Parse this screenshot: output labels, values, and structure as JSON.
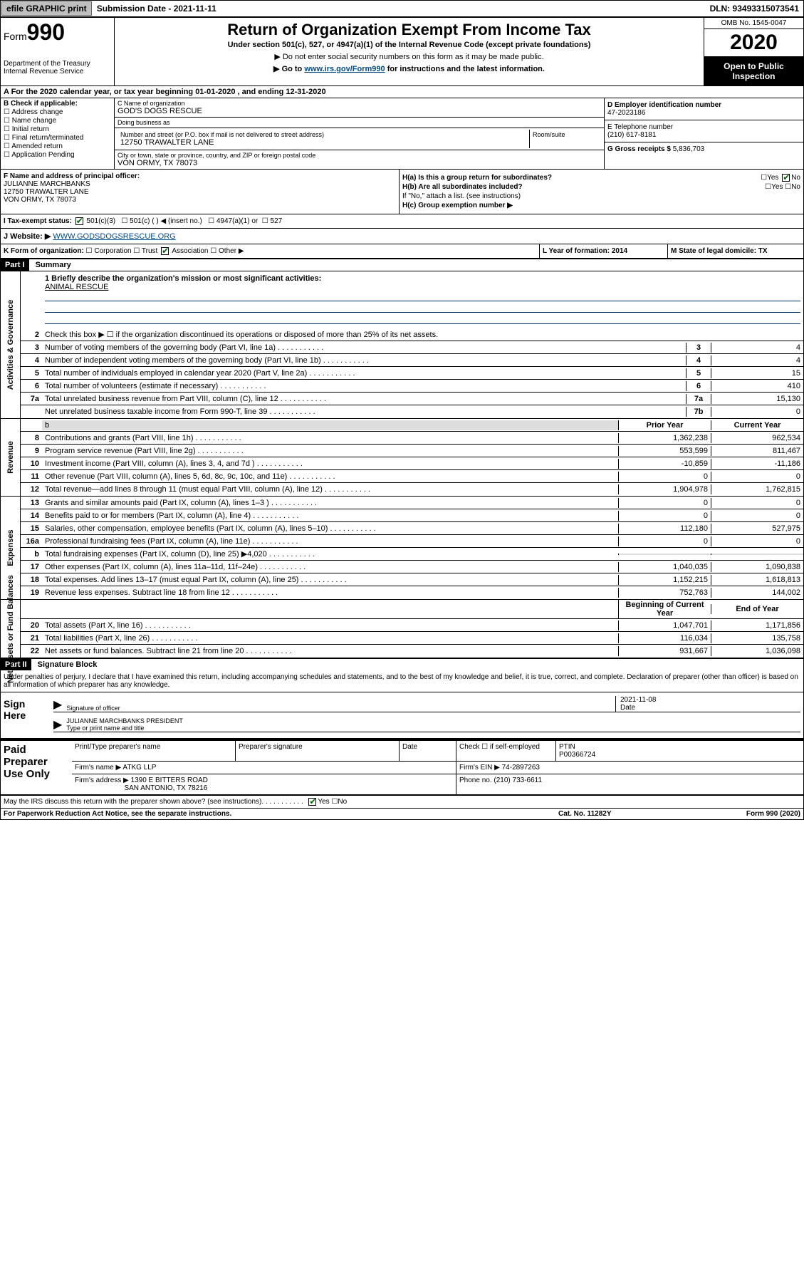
{
  "topbar": {
    "efile": "efile GRAPHIC print",
    "submission": "Submission Date - 2021-11-11",
    "dln": "DLN: 93493315073541"
  },
  "header": {
    "form_label": "Form",
    "form_no": "990",
    "title": "Return of Organization Exempt From Income Tax",
    "sub1": "Under section 501(c), 527, or 4947(a)(1) of the Internal Revenue Code (except private foundations)",
    "sub2": "▶ Do not enter social security numbers on this form as it may be made public.",
    "sub3_pre": "▶ Go to ",
    "sub3_link": "www.irs.gov/Form990",
    "sub3_post": " for instructions and the latest information.",
    "dept": "Department of the Treasury Internal Revenue Service",
    "omb": "OMB No. 1545-0047",
    "year": "2020",
    "open": "Open to Public Inspection"
  },
  "rowA": "A For the 2020 calendar year, or tax year beginning 01-01-2020   , and ending 12-31-2020",
  "boxB": {
    "label": "B Check if applicable:",
    "opts": [
      "Address change",
      "Name change",
      "Initial return",
      "Final return/terminated",
      "Amended return",
      "Application Pending"
    ]
  },
  "boxC": {
    "name_lbl": "C Name of organization",
    "name": "GOD'S DOGS RESCUE",
    "dba_lbl": "Doing business as",
    "dba": "",
    "street_lbl": "Number and street (or P.O. box if mail is not delivered to street address)",
    "street": "12750 TRAWALTER LANE",
    "room_lbl": "Room/suite",
    "city_lbl": "City or town, state or province, country, and ZIP or foreign postal code",
    "city": "VON ORMY, TX  78073"
  },
  "boxD": {
    "ein_lbl": "D Employer identification number",
    "ein": "47-2023186",
    "tel_lbl": "E Telephone number",
    "tel": "(210) 617-8181",
    "gross_lbl": "G Gross receipts $ ",
    "gross": "5,836,703"
  },
  "boxF": {
    "lbl": "F  Name and address of principal officer:",
    "name": "JULIANNE MARCHBANKS",
    "addr1": "12750 TRAWALTER LANE",
    "addr2": "VON ORMY, TX  78073"
  },
  "boxH": {
    "a": "H(a)  Is this a group return for subordinates?",
    "b": "H(b)  Are all subordinates included?",
    "b_note": "If \"No,\" attach a list. (see instructions)",
    "c": "H(c)  Group exemption number ▶",
    "yes": "Yes",
    "no": "No"
  },
  "rowI": {
    "label": "I     Tax-exempt status:",
    "o1": "501(c)(3)",
    "o2": "501(c) (  ) ◀ (insert no.)",
    "o3": "4947(a)(1) or",
    "o4": "527"
  },
  "rowJ": {
    "label": "J    Website: ▶",
    "url": "WWW.GODSDOGSRESCUE.ORG"
  },
  "rowK": {
    "label": "K Form of organization:",
    "o1": "Corporation",
    "o2": "Trust",
    "o3": "Association",
    "o4": "Other ▶",
    "l": "L Year of formation: 2014",
    "m": "M State of legal domicile: TX"
  },
  "part1": {
    "hdr": "Part I",
    "title": "Summary"
  },
  "summary": {
    "q1": "1  Briefly describe the organization's mission or most significant activities:",
    "mission": "ANIMAL RESCUE",
    "q2": "Check this box ▶ ☐  if the organization discontinued its operations or disposed of more than 25% of its net assets.",
    "lines_gov": [
      {
        "n": "3",
        "d": "Number of voting members of the governing body (Part VI, line 1a)",
        "box": "3",
        "v": "4"
      },
      {
        "n": "4",
        "d": "Number of independent voting members of the governing body (Part VI, line 1b)",
        "box": "4",
        "v": "4"
      },
      {
        "n": "5",
        "d": "Total number of individuals employed in calendar year 2020 (Part V, line 2a)",
        "box": "5",
        "v": "15"
      },
      {
        "n": "6",
        "d": "Total number of volunteers (estimate if necessary)",
        "box": "6",
        "v": "410"
      },
      {
        "n": "7a",
        "d": "Total unrelated business revenue from Part VIII, column (C), line 12",
        "box": "7a",
        "v": "15,130"
      },
      {
        "n": "",
        "d": "Net unrelated business taxable income from Form 990-T, line 39",
        "box": "7b",
        "v": "0"
      }
    ],
    "hdr_prior": "Prior Year",
    "hdr_curr": "Current Year",
    "revenue": [
      {
        "n": "8",
        "d": "Contributions and grants (Part VIII, line 1h)",
        "p": "1,362,238",
        "c": "962,534"
      },
      {
        "n": "9",
        "d": "Program service revenue (Part VIII, line 2g)",
        "p": "553,599",
        "c": "811,467"
      },
      {
        "n": "10",
        "d": "Investment income (Part VIII, column (A), lines 3, 4, and 7d )",
        "p": "-10,859",
        "c": "-11,186"
      },
      {
        "n": "11",
        "d": "Other revenue (Part VIII, column (A), lines 5, 6d, 8c, 9c, 10c, and 11e)",
        "p": "0",
        "c": "0"
      },
      {
        "n": "12",
        "d": "Total revenue—add lines 8 through 11 (must equal Part VIII, column (A), line 12)",
        "p": "1,904,978",
        "c": "1,762,815"
      }
    ],
    "expenses": [
      {
        "n": "13",
        "d": "Grants and similar amounts paid (Part IX, column (A), lines 1–3 )",
        "p": "0",
        "c": "0"
      },
      {
        "n": "14",
        "d": "Benefits paid to or for members (Part IX, column (A), line 4)",
        "p": "0",
        "c": "0"
      },
      {
        "n": "15",
        "d": "Salaries, other compensation, employee benefits (Part IX, column (A), lines 5–10)",
        "p": "112,180",
        "c": "527,975"
      },
      {
        "n": "16a",
        "d": "Professional fundraising fees (Part IX, column (A), line 11e)",
        "p": "0",
        "c": "0"
      },
      {
        "n": "b",
        "d": "Total fundraising expenses (Part IX, column (D), line 25) ▶4,020",
        "p": "",
        "c": "",
        "grey": true
      },
      {
        "n": "17",
        "d": "Other expenses (Part IX, column (A), lines 11a–11d, 11f–24e)",
        "p": "1,040,035",
        "c": "1,090,838"
      },
      {
        "n": "18",
        "d": "Total expenses. Add lines 13–17 (must equal Part IX, column (A), line 25)",
        "p": "1,152,215",
        "c": "1,618,813"
      },
      {
        "n": "19",
        "d": "Revenue less expenses. Subtract line 18 from line 12",
        "p": "752,763",
        "c": "144,002"
      }
    ],
    "hdr_beg": "Beginning of Current Year",
    "hdr_end": "End of Year",
    "netassets": [
      {
        "n": "20",
        "d": "Total assets (Part X, line 16)",
        "p": "1,047,701",
        "c": "1,171,856"
      },
      {
        "n": "21",
        "d": "Total liabilities (Part X, line 26)",
        "p": "116,034",
        "c": "135,758"
      },
      {
        "n": "22",
        "d": "Net assets or fund balances. Subtract line 21 from line 20",
        "p": "931,667",
        "c": "1,036,098"
      }
    ]
  },
  "sidelabels": {
    "gov": "Activities & Governance",
    "rev": "Revenue",
    "exp": "Expenses",
    "net": "Net Assets or Fund Balances"
  },
  "part2": {
    "hdr": "Part II",
    "title": "Signature Block"
  },
  "sig": {
    "decl": "Under penalties of perjury, I declare that I have examined this return, including accompanying schedules and statements, and to the best of my knowledge and belief, it is true, correct, and complete. Declaration of preparer (other than officer) is based on all information of which preparer has any knowledge.",
    "sign_here": "Sign Here",
    "sig_officer": "Signature of officer",
    "date": "Date",
    "sig_date": "2021-11-08",
    "name_title": "JULIANNE MARCHBANKS  PRESIDENT",
    "type_name": "Type or print name and title"
  },
  "paid": {
    "lbl": "Paid Preparer Use Only",
    "h1": "Print/Type preparer's name",
    "h2": "Preparer's signature",
    "h3": "Date",
    "h4": "Check ☐ if self-employed",
    "h5_lbl": "PTIN",
    "h5": "P00366724",
    "firm_lbl": "Firm's name   ▶",
    "firm": "ATKG LLP",
    "ein_lbl": "Firm's EIN ▶",
    "ein": "74-2897263",
    "addr_lbl": "Firm's address ▶",
    "addr1": "1390 E BITTERS ROAD",
    "addr2": "SAN ANTONIO, TX  78216",
    "phone_lbl": "Phone no.",
    "phone": "(210) 733-6611"
  },
  "discuss": {
    "q": "May the IRS discuss this return with the preparer shown above? (see instructions)",
    "yes": "Yes",
    "no": "No"
  },
  "footer": {
    "l": "For Paperwork Reduction Act Notice, see the separate instructions.",
    "c": "Cat. No. 11282Y",
    "r": "Form 990 (2020)"
  }
}
